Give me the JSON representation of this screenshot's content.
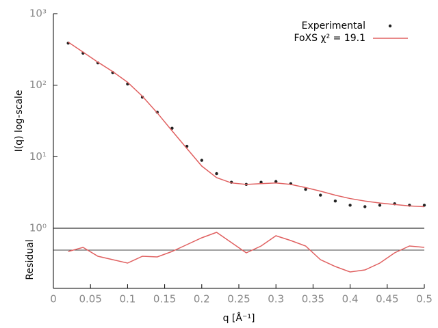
{
  "chart_data": [
    {
      "type": "line",
      "ylabel": "I(q) log-scale",
      "log_y": true,
      "ylim": [
        1,
        1000
      ],
      "yticks": [
        {
          "value": 1,
          "label": "10⁰"
        },
        {
          "value": 10,
          "label": "10¹"
        },
        {
          "value": 100,
          "label": "10²"
        },
        {
          "value": 1000,
          "label": "10³"
        }
      ],
      "xlim": [
        0,
        0.5
      ],
      "legend": "top-right",
      "x": [
        0.02,
        0.04,
        0.06,
        0.08,
        0.1,
        0.12,
        0.14,
        0.16,
        0.18,
        0.2,
        0.22,
        0.24,
        0.26,
        0.28,
        0.3,
        0.32,
        0.34,
        0.36,
        0.38,
        0.4,
        0.42,
        0.44,
        0.46,
        0.48,
        0.5
      ],
      "series": [
        {
          "name": "Experimental",
          "color": "#222222",
          "marker": "point",
          "values": [
            388,
            280,
            205,
            150,
            104,
            68,
            42,
            25,
            14,
            8.9,
            5.8,
            4.4,
            4.1,
            4.4,
            4.5,
            4.2,
            3.5,
            2.9,
            2.4,
            2.1,
            2.0,
            2.1,
            2.2,
            2.1,
            2.1
          ]
        },
        {
          "name": "FoXS χ² = 19.1",
          "color": "#e06060",
          "marker": "line",
          "values": [
            400,
            290,
            210,
            155,
            110,
            70,
            41,
            23,
            13,
            7.4,
            5.1,
            4.3,
            4.1,
            4.2,
            4.3,
            4.1,
            3.7,
            3.3,
            2.9,
            2.6,
            2.4,
            2.25,
            2.15,
            2.05,
            2.0
          ]
        }
      ]
    },
    {
      "type": "line",
      "ylabel": "Residual",
      "xlabel": "q [Å⁻¹]",
      "ylim": [
        -2.8,
        1.6
      ],
      "xlim": [
        0,
        0.5
      ],
      "xticks": [
        0,
        0.05,
        0.1,
        0.15,
        0.2,
        0.25,
        0.3,
        0.35,
        0.4,
        0.45,
        0.5
      ],
      "x": [
        0.02,
        0.04,
        0.06,
        0.08,
        0.1,
        0.12,
        0.14,
        0.16,
        0.18,
        0.2,
        0.22,
        0.24,
        0.26,
        0.28,
        0.3,
        0.32,
        0.34,
        0.36,
        0.38,
        0.4,
        0.42,
        0.44,
        0.46,
        0.48,
        0.5
      ],
      "series": [
        {
          "color": "#e06060",
          "values": [
            -0.1,
            0.2,
            -0.45,
            -0.7,
            -0.95,
            -0.45,
            -0.5,
            -0.1,
            0.4,
            0.9,
            1.3,
            0.55,
            -0.2,
            0.3,
            1.05,
            0.7,
            0.3,
            -0.7,
            -1.2,
            -1.6,
            -1.45,
            -0.95,
            -0.2,
            0.3,
            0.2
          ]
        }
      ]
    }
  ]
}
